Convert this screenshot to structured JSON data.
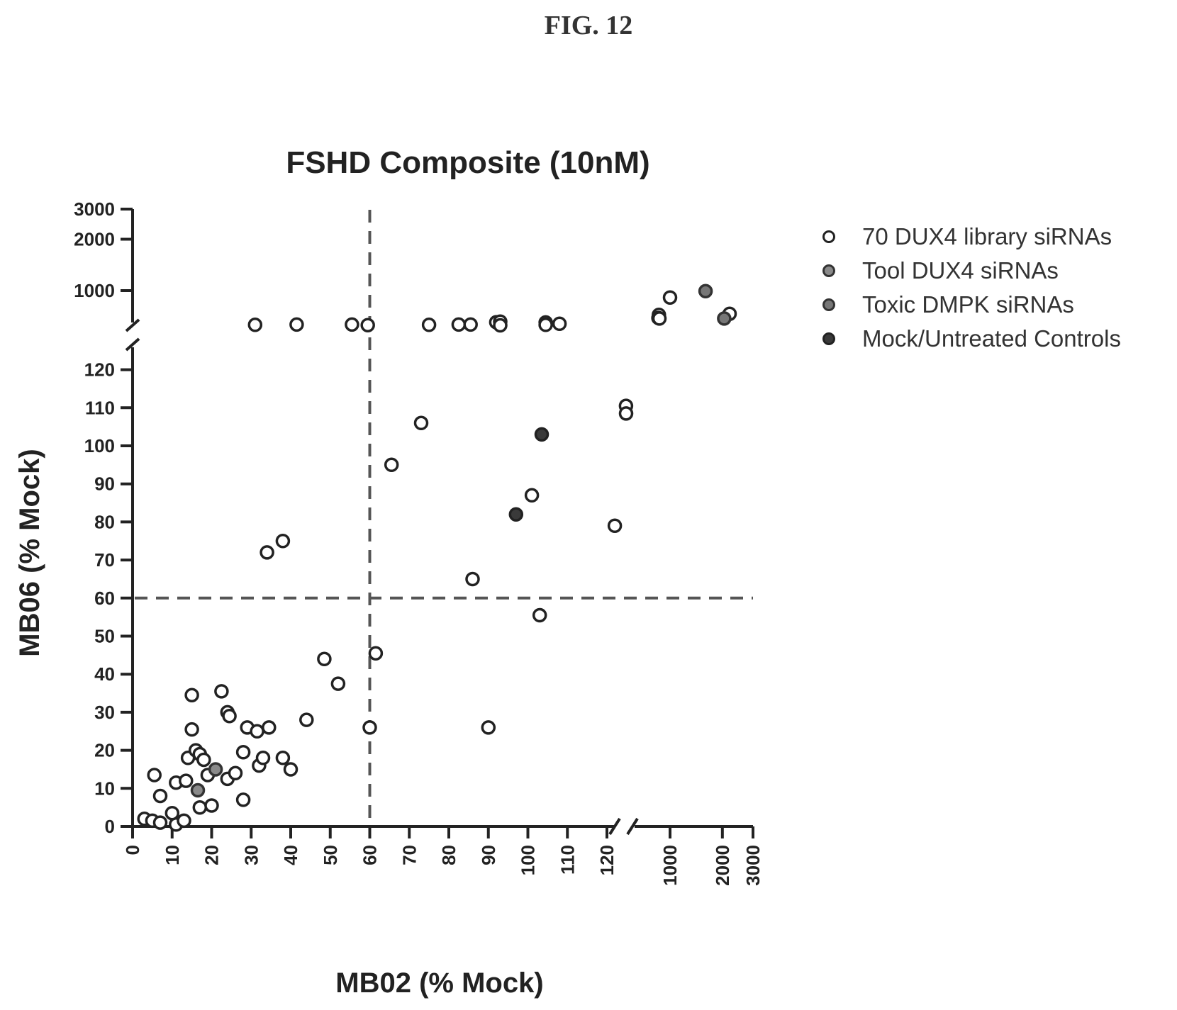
{
  "figure_label": "FIG. 12",
  "chart_data": {
    "type": "scatter",
    "title": "FSHD Composite (10nM)",
    "xlabel": "MB02 (% Mock)",
    "ylabel": "MB06 (% Mock)",
    "x_axis": {
      "scale": "broken",
      "linear_segment": [
        0,
        125
      ],
      "log_segment": [
        300,
        3000
      ],
      "ticks": [
        "0",
        "10",
        "20",
        "30",
        "40",
        "50",
        "60",
        "70",
        "80",
        "90",
        "100",
        "110",
        "120",
        "1000",
        "2000",
        "3000"
      ]
    },
    "y_axis": {
      "scale": "broken",
      "linear_segment": [
        0,
        125
      ],
      "upper_segment_ticks": [
        "1000",
        "2000",
        "3000"
      ],
      "ticks": [
        "0",
        "10",
        "20",
        "30",
        "40",
        "50",
        "60",
        "70",
        "80",
        "90",
        "100",
        "110",
        "120",
        "1000",
        "2000",
        "3000"
      ]
    },
    "threshold_lines": {
      "x": 60,
      "y": 60,
      "style": "dashed"
    },
    "grid": false,
    "legend_position": "right",
    "series": [
      {
        "name": "70 DUX4 library siRNAs",
        "fill": "#ffffff",
        "stroke": "#222222",
        "points": [
          [
            3,
            2
          ],
          [
            5,
            1.5
          ],
          [
            7,
            1
          ],
          [
            11,
            0.5
          ],
          [
            13,
            1.5
          ],
          [
            10,
            3.5
          ],
          [
            7,
            8
          ],
          [
            5.5,
            13.5
          ],
          [
            11,
            11.5
          ],
          [
            13.5,
            12
          ],
          [
            14,
            18
          ],
          [
            15,
            25.5
          ],
          [
            15,
            34.5
          ],
          [
            16,
            20
          ],
          [
            17,
            19
          ],
          [
            18,
            17.5
          ],
          [
            17,
            5
          ],
          [
            20,
            5.5
          ],
          [
            19,
            13.5
          ],
          [
            22.5,
            35.5
          ],
          [
            24,
            30
          ],
          [
            24.5,
            29
          ],
          [
            24,
            12.5
          ],
          [
            26,
            14
          ],
          [
            28,
            19.5
          ],
          [
            28,
            7
          ],
          [
            29,
            26
          ],
          [
            31.5,
            25
          ],
          [
            32,
            16
          ],
          [
            33,
            18
          ],
          [
            34.5,
            26
          ],
          [
            38,
            18
          ],
          [
            40,
            15
          ],
          [
            44,
            28
          ],
          [
            48.5,
            44
          ],
          [
            52,
            37.5
          ],
          [
            60,
            26
          ],
          [
            61.5,
            45.5
          ],
          [
            34,
            72
          ],
          [
            38,
            75
          ],
          [
            65.5,
            95
          ],
          [
            73,
            106
          ],
          [
            86,
            65
          ],
          [
            90,
            26
          ],
          [
            101,
            87
          ],
          [
            103,
            55.5
          ],
          [
            122,
            79
          ],
          [
            131,
            110.5
          ],
          [
            132,
            108.5
          ],
          [
            31,
            350
          ],
          [
            41.5,
            355
          ],
          [
            55.5,
            355
          ],
          [
            59.5,
            345
          ],
          [
            75,
            350
          ],
          [
            82.5,
            355
          ],
          [
            85.5,
            355
          ],
          [
            92,
            400
          ],
          [
            93,
            410
          ],
          [
            93,
            340
          ],
          [
            104.5,
            395
          ],
          [
            104.5,
            350
          ],
          [
            108,
            370
          ],
          [
            780,
            540
          ],
          [
            770,
            480
          ],
          [
            790,
            470
          ],
          [
            1000,
            870
          ],
          [
            2200,
            560
          ]
        ]
      },
      {
        "name": "Tool DUX4 siRNAs",
        "fill": "#8a8a8a",
        "stroke": "#333333",
        "points": [
          [
            16.5,
            9.5
          ],
          [
            21,
            15
          ]
        ]
      },
      {
        "name": "Toxic DMPK siRNAs",
        "fill": "#777777",
        "stroke": "#333333",
        "points": [
          [
            1600,
            990
          ],
          [
            2050,
            470
          ]
        ]
      },
      {
        "name": "Mock/Untreated Controls",
        "fill": "#3a3a3a",
        "stroke": "#222222",
        "points": [
          [
            97,
            82
          ],
          [
            103.5,
            103
          ]
        ]
      }
    ]
  }
}
